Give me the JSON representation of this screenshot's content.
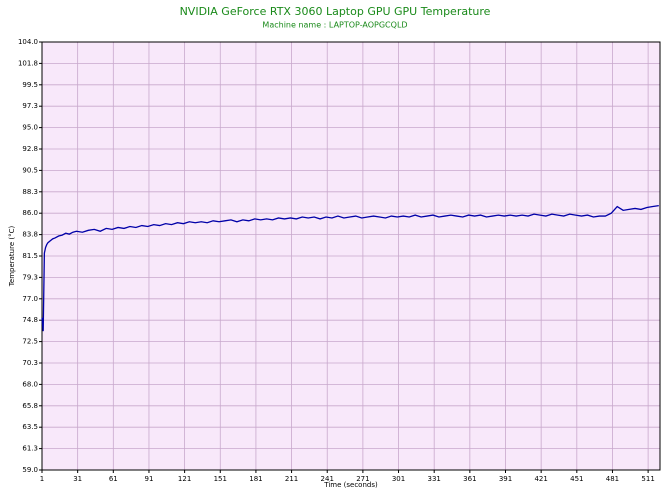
{
  "chart_data": {
    "type": "line",
    "title": "NVIDIA GeForce RTX 3060 Laptop GPU GPU Temperature",
    "subtitle": "Machine name : LAPTOP-AOPGCQLD",
    "xlabel": "Time (seconds)",
    "ylabel": "Temperature (°C)",
    "x": [
      1,
      2,
      3,
      4,
      5,
      6,
      8,
      10,
      12,
      15,
      18,
      21,
      24,
      27,
      30,
      35,
      40,
      45,
      50,
      55,
      60,
      65,
      70,
      75,
      80,
      85,
      90,
      95,
      100,
      105,
      110,
      115,
      120,
      125,
      130,
      135,
      140,
      145,
      150,
      155,
      160,
      165,
      170,
      175,
      180,
      185,
      190,
      195,
      200,
      205,
      210,
      215,
      220,
      225,
      230,
      235,
      240,
      245,
      250,
      255,
      260,
      265,
      270,
      275,
      280,
      285,
      290,
      295,
      300,
      305,
      310,
      315,
      320,
      325,
      330,
      335,
      340,
      345,
      350,
      355,
      360,
      365,
      370,
      375,
      380,
      385,
      390,
      395,
      400,
      405,
      410,
      415,
      420,
      425,
      430,
      435,
      440,
      445,
      450,
      455,
      460,
      465,
      470,
      475,
      480,
      485,
      490,
      495,
      500,
      505,
      510,
      515,
      520
    ],
    "series": [
      {
        "name": "GPU Temperature",
        "color": "#0000a8",
        "values": [
          75.0,
          73.6,
          81.8,
          82.4,
          82.7,
          82.9,
          83.1,
          83.3,
          83.4,
          83.6,
          83.7,
          83.9,
          83.8,
          84.0,
          84.1,
          84.0,
          84.2,
          84.3,
          84.1,
          84.4,
          84.3,
          84.5,
          84.4,
          84.6,
          84.5,
          84.7,
          84.6,
          84.8,
          84.7,
          84.9,
          84.8,
          85.0,
          84.9,
          85.1,
          85.0,
          85.1,
          85.0,
          85.2,
          85.1,
          85.2,
          85.3,
          85.1,
          85.3,
          85.2,
          85.4,
          85.3,
          85.4,
          85.3,
          85.5,
          85.4,
          85.5,
          85.4,
          85.6,
          85.5,
          85.6,
          85.4,
          85.6,
          85.5,
          85.7,
          85.5,
          85.6,
          85.7,
          85.5,
          85.6,
          85.7,
          85.6,
          85.5,
          85.7,
          85.6,
          85.7,
          85.6,
          85.8,
          85.6,
          85.7,
          85.8,
          85.6,
          85.7,
          85.8,
          85.7,
          85.6,
          85.8,
          85.7,
          85.8,
          85.6,
          85.7,
          85.8,
          85.7,
          85.8,
          85.7,
          85.8,
          85.7,
          85.9,
          85.8,
          85.7,
          85.9,
          85.8,
          85.7,
          85.9,
          85.8,
          85.7,
          85.8,
          85.6,
          85.7,
          85.7,
          86.0,
          86.7,
          86.3,
          86.4,
          86.5,
          86.4,
          86.6,
          86.7,
          86.8
        ]
      }
    ],
    "xlim": [
      1,
      521
    ],
    "xticks": [
      1,
      31,
      61,
      91,
      121,
      151,
      181,
      211,
      241,
      271,
      301,
      331,
      361,
      391,
      421,
      451,
      481,
      511
    ],
    "ylim": [
      59,
      104
    ],
    "yticks": [
      {
        "value": 59,
        "label": "59.0"
      },
      {
        "value": 61.25,
        "label": "61.3"
      },
      {
        "value": 63.5,
        "label": "63.5"
      },
      {
        "value": 65.75,
        "label": "65.8"
      },
      {
        "value": 68,
        "label": "68.0"
      },
      {
        "value": 70.25,
        "label": "70.3"
      },
      {
        "value": 72.5,
        "label": "72.5"
      },
      {
        "value": 74.75,
        "label": "74.8"
      },
      {
        "value": 77,
        "label": "77.0"
      },
      {
        "value": 79.25,
        "label": "79.3"
      },
      {
        "value": 81.5,
        "label": "81.5"
      },
      {
        "value": 83.75,
        "label": "83.8"
      },
      {
        "value": 86,
        "label": "86.0"
      },
      {
        "value": 88.25,
        "label": "88.3"
      },
      {
        "value": 90.5,
        "label": "90.5"
      },
      {
        "value": 92.75,
        "label": "92.8"
      },
      {
        "value": 95,
        "label": "95.0"
      },
      {
        "value": 97.25,
        "label": "97.3"
      },
      {
        "value": 99.5,
        "label": "99.5"
      },
      {
        "value": 101.75,
        "label": "101.8"
      },
      {
        "value": 104,
        "label": "104.0"
      }
    ],
    "grid": true,
    "plot_background": "#f8e8fa",
    "grid_color": "#c8a8cc"
  }
}
